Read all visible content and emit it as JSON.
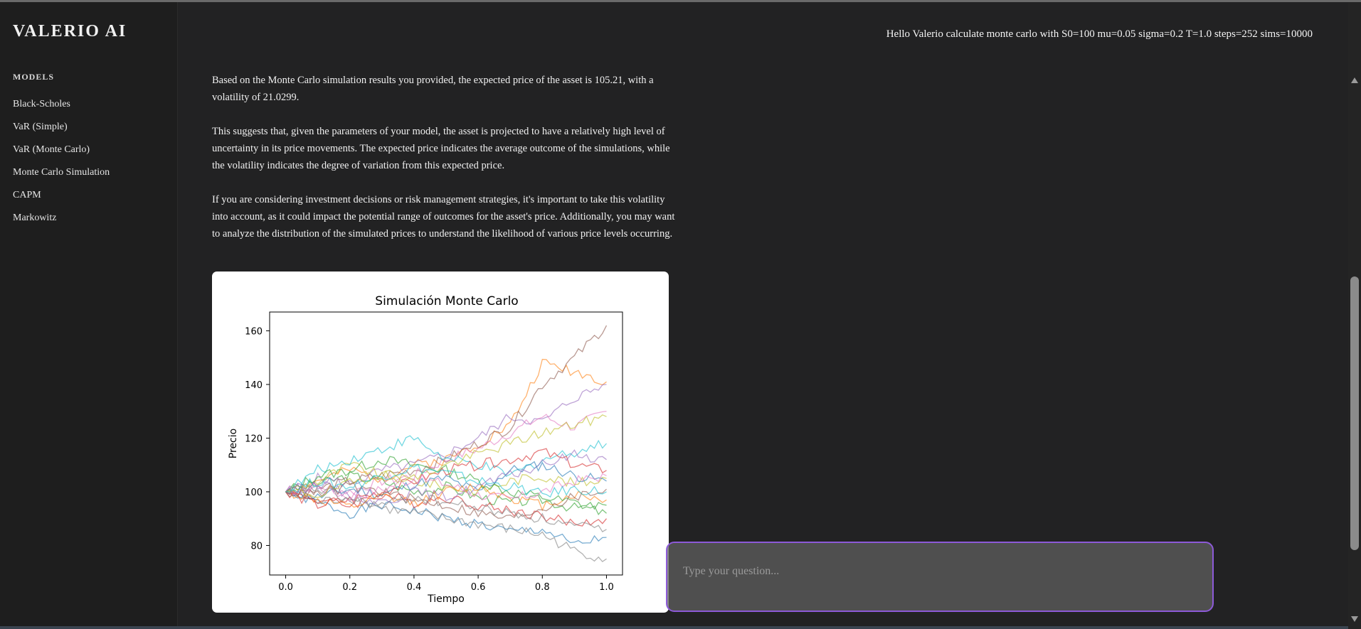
{
  "app": {
    "title": "VALERIO AI"
  },
  "sidebar": {
    "section_label": "MODELS",
    "items": [
      {
        "label": "Black-Scholes"
      },
      {
        "label": "VaR (Simple)"
      },
      {
        "label": "VaR (Monte Carlo)"
      },
      {
        "label": "Monte Carlo Simulation"
      },
      {
        "label": "CAPM"
      },
      {
        "label": "Markowitz"
      }
    ]
  },
  "chat": {
    "user_message": "Hello Valerio calculate monte carlo with S0=100 mu=0.05 sigma=0.2 T=1.0 steps=252 sims=10000",
    "assistant_paragraphs": [
      "Based on the Monte Carlo simulation results you provided, the expected price of the asset is 105.21, with a volatility of 21.0299.",
      "This suggests that, given the parameters of your model, the asset is projected to have a relatively high level of uncertainty in its price movements. The expected price indicates the average outcome of the simulations, while the volatility indicates the degree of variation from this expected price.",
      "If you are considering investment decisions or risk management strategies, it's important to take this volatility into account, as it could impact the potential range of outcomes for the asset's price. Additionally, you may want to analyze the distribution of the simulated prices to understand the likelihood of various price levels occurring."
    ]
  },
  "input": {
    "placeholder": "Type your question...",
    "value": "",
    "accent_color": "#8d5ad8"
  },
  "chart_data": {
    "type": "line",
    "title": "Simulación Monte Carlo",
    "xlabel": "Tiempo",
    "ylabel": "Precio",
    "xlim": [
      -0.05,
      1.05
    ],
    "ylim": [
      69,
      167
    ],
    "xticks": [
      0.0,
      0.2,
      0.4,
      0.6,
      0.8,
      1.0
    ],
    "xtick_labels": [
      "0.0",
      "0.2",
      "0.4",
      "0.6",
      "0.8",
      "1.0"
    ],
    "yticks": [
      80,
      100,
      120,
      140,
      160
    ],
    "ytick_labels": [
      "80",
      "100",
      "120",
      "140",
      "160"
    ],
    "grid": false,
    "legend": "none",
    "series": [
      {
        "color": "#1f77b4",
        "values": [
          100,
          96,
          92,
          95,
          93,
          90,
          88,
          85,
          86,
          80,
          83
        ]
      },
      {
        "color": "#ff7f0e",
        "values": [
          100,
          104,
          108,
          105,
          110,
          112,
          118,
          125,
          148,
          145,
          141
        ]
      },
      {
        "color": "#2ca02c",
        "values": [
          100,
          103,
          106,
          104,
          100,
          102,
          98,
          96,
          97,
          94,
          95
        ]
      },
      {
        "color": "#d62728",
        "values": [
          100,
          97,
          95,
          99,
          96,
          98,
          95,
          93,
          91,
          88,
          90
        ]
      },
      {
        "color": "#9467bd",
        "values": [
          100,
          105,
          103,
          108,
          110,
          114,
          120,
          128,
          126,
          135,
          140
        ]
      },
      {
        "color": "#8c564b",
        "values": [
          100,
          101,
          104,
          106,
          108,
          112,
          118,
          124,
          140,
          150,
          162
        ]
      },
      {
        "color": "#e377c2",
        "values": [
          100,
          102,
          100,
          104,
          106,
          112,
          116,
          122,
          128,
          124,
          130
        ]
      },
      {
        "color": "#7f7f7f",
        "values": [
          100,
          96,
          98,
          94,
          92,
          90,
          88,
          86,
          84,
          78,
          75
        ]
      },
      {
        "color": "#bcbd22",
        "values": [
          100,
          104,
          110,
          106,
          104,
          102,
          100,
          104,
          106,
          103,
          105
        ]
      },
      {
        "color": "#17becf",
        "values": [
          100,
          108,
          112,
          116,
          120,
          112,
          110,
          106,
          112,
          115,
          118
        ]
      },
      {
        "color": "#1f77b4",
        "values": [
          100,
          98,
          101,
          99,
          103,
          105,
          100,
          108,
          110,
          106,
          104
        ]
      },
      {
        "color": "#ff7f0e",
        "values": [
          100,
          97,
          94,
          98,
          96,
          100,
          102,
          98,
          95,
          99,
          97
        ]
      },
      {
        "color": "#2ca02c",
        "values": [
          100,
          106,
          108,
          112,
          110,
          108,
          104,
          100,
          98,
          96,
          92
        ]
      },
      {
        "color": "#d62728",
        "values": [
          100,
          95,
          97,
          100,
          104,
          108,
          110,
          112,
          115,
          110,
          108
        ]
      },
      {
        "color": "#9467bd",
        "values": [
          100,
          103,
          99,
          96,
          100,
          98,
          102,
          106,
          110,
          114,
          112
        ]
      },
      {
        "color": "#8c564b",
        "values": [
          100,
          99,
          102,
          100,
          97,
          95,
          92,
          90,
          94,
          98,
          101
        ]
      },
      {
        "color": "#e377c2",
        "values": [
          100,
          102,
          98,
          101,
          105,
          103,
          99,
          97,
          100,
          104,
          106
        ]
      },
      {
        "color": "#7f7f7f",
        "values": [
          100,
          101,
          97,
          95,
          98,
          96,
          94,
          92,
          90,
          87,
          86
        ]
      },
      {
        "color": "#bcbd22",
        "values": [
          100,
          99,
          103,
          107,
          105,
          110,
          114,
          118,
          122,
          125,
          128
        ]
      },
      {
        "color": "#17becf",
        "values": [
          100,
          104,
          102,
          106,
          109,
          107,
          104,
          102,
          99,
          101,
          100
        ]
      }
    ]
  }
}
